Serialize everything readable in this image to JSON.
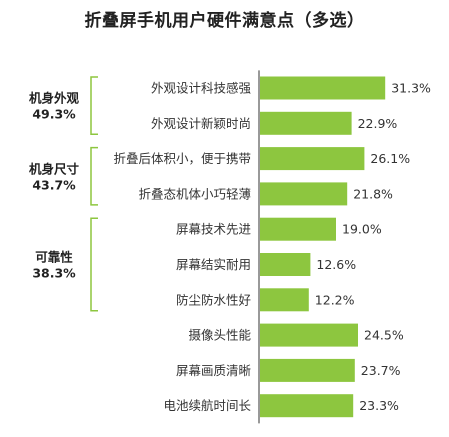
{
  "chart_data": {
    "type": "bar",
    "orientation": "horizontal",
    "title": "折叠屏手机用户硬件满意点（多选）",
    "unit": "%",
    "bar_color": "#8dc63f",
    "bracket_color": "#8dc63f",
    "xlim": [
      0,
      35
    ],
    "categories": [
      "外观设计科技感强",
      "外观设计新颖时尚",
      "折叠后体积小，便于携带",
      "折叠态机体小巧轻薄",
      "屏幕技术先进",
      "屏幕结实耐用",
      "防尘防水性好",
      "摄像头性能",
      "屏幕画质清晰",
      "电池续航时间长"
    ],
    "values": [
      31.3,
      22.9,
      26.1,
      21.8,
      19.0,
      12.6,
      12.2,
      24.5,
      23.7,
      23.3
    ],
    "value_labels": [
      "31.3%",
      "22.9%",
      "26.1%",
      "21.8%",
      "19.0%",
      "12.6%",
      "12.2%",
      "24.5%",
      "23.7%",
      "23.3%"
    ],
    "groups": [
      {
        "name": "机身外观",
        "value": 49.3,
        "value_label": "49.3%",
        "start": 0,
        "end": 1
      },
      {
        "name": "机身尺寸",
        "value": 43.7,
        "value_label": "43.7%",
        "start": 2,
        "end": 3
      },
      {
        "name": "可靠性",
        "value": 38.3,
        "value_label": "38.3%",
        "start": 4,
        "end": 6
      }
    ]
  }
}
